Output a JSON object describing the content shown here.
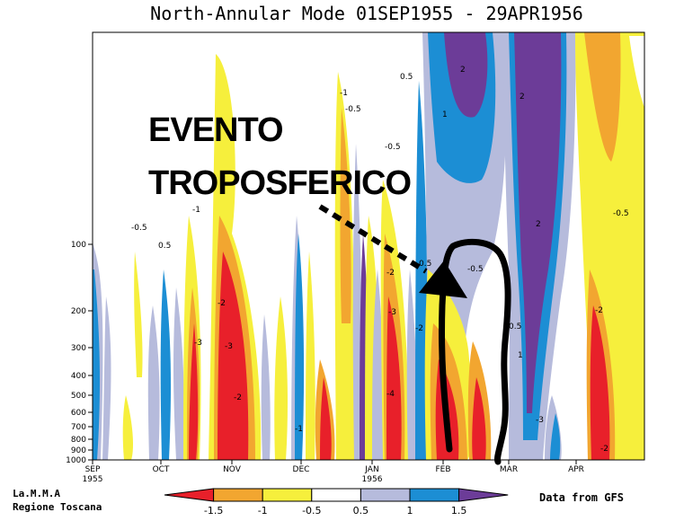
{
  "chart_data": {
    "type": "heatmap",
    "title": "North-Annular Mode 01SEP1955 - 29APR1956",
    "y_ticks": [
      "100",
      "200",
      "300",
      "400",
      "500",
      "600",
      "700",
      "800",
      "900",
      "1000"
    ],
    "x_ticks": [
      {
        "label": "SEP",
        "sub": "1955"
      },
      {
        "label": "OCT",
        "sub": ""
      },
      {
        "label": "NOV",
        "sub": ""
      },
      {
        "label": "DEC",
        "sub": ""
      },
      {
        "label": "JAN",
        "sub": "1956"
      },
      {
        "label": "FEB",
        "sub": ""
      },
      {
        "label": "MAR",
        "sub": ""
      },
      {
        "label": "APR",
        "sub": ""
      }
    ],
    "colorbar": {
      "ticks": [
        "-1.5",
        "-1",
        "-0.5",
        "0.5",
        "1",
        "1.5"
      ],
      "colors": [
        "#e8202a",
        "#f2a630",
        "#f6ef3c",
        "#ffffff",
        "#b6bbdc",
        "#1c8ed4",
        "#6c3c98"
      ]
    },
    "contour_labels": [
      "-0.5",
      "0.5",
      "1",
      "-1",
      "-2",
      "-3",
      "-4",
      "2",
      "-0.5",
      "0.5",
      "1",
      "-1",
      "-2",
      "-3"
    ]
  },
  "annotation": {
    "line1": "EVENTO",
    "line2": "TROPOSFERICO"
  },
  "credit": {
    "line1": "La.M.M.A",
    "line2": "Regione Toscana"
  },
  "source": "Data from GFS"
}
